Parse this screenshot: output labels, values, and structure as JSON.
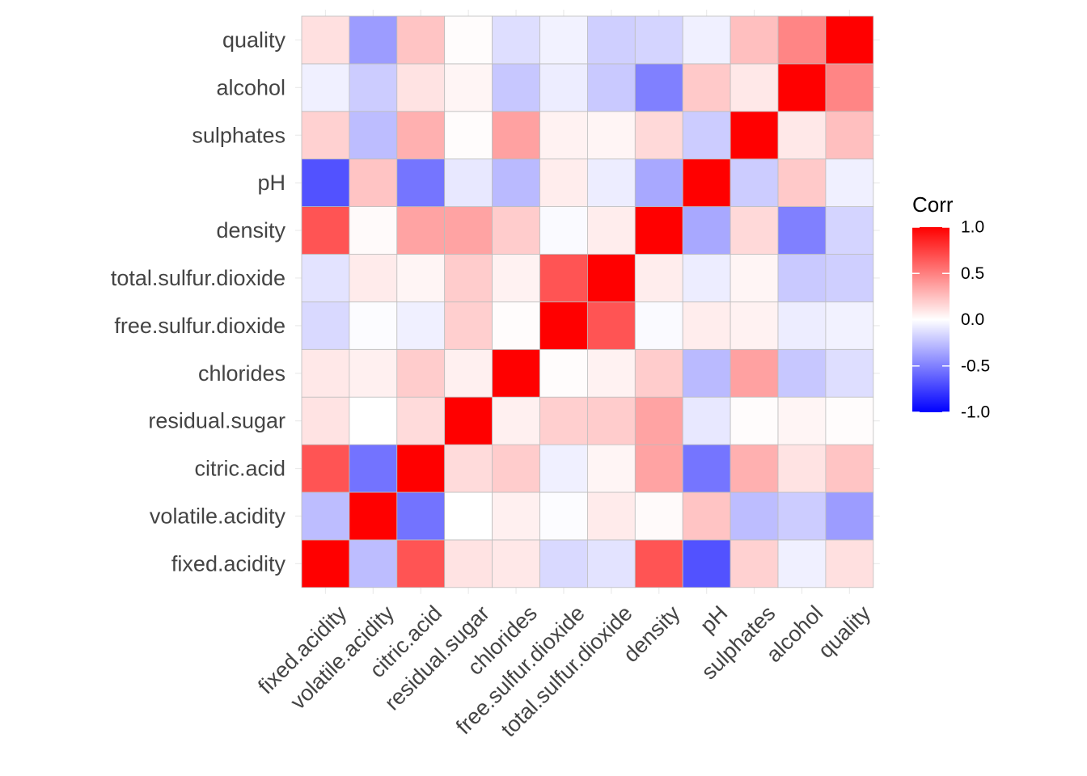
{
  "chart_data": {
    "type": "heatmap",
    "title": "",
    "xlabel": "",
    "ylabel": "",
    "variables": [
      "fixed.acidity",
      "volatile.acidity",
      "citric.acid",
      "residual.sugar",
      "chlorides",
      "free.sulfur.dioxide",
      "total.sulfur.dioxide",
      "density",
      "pH",
      "sulphates",
      "alcohol",
      "quality"
    ],
    "matrix": [
      [
        1.0,
        -0.26,
        0.67,
        0.11,
        0.09,
        -0.15,
        -0.11,
        0.67,
        -0.68,
        0.18,
        -0.06,
        0.12
      ],
      [
        -0.26,
        1.0,
        -0.55,
        0.0,
        0.06,
        -0.01,
        0.08,
        0.02,
        0.23,
        -0.26,
        -0.2,
        -0.39
      ],
      [
        0.67,
        -0.55,
        1.0,
        0.14,
        0.2,
        -0.06,
        0.04,
        0.36,
        -0.54,
        0.31,
        0.11,
        0.23
      ],
      [
        0.11,
        0.0,
        0.14,
        1.0,
        0.06,
        0.19,
        0.2,
        0.36,
        -0.09,
        0.01,
        0.04,
        0.01
      ],
      [
        0.09,
        0.06,
        0.2,
        0.06,
        1.0,
        0.01,
        0.05,
        0.2,
        -0.27,
        0.37,
        -0.22,
        -0.13
      ],
      [
        -0.15,
        -0.01,
        -0.06,
        0.19,
        0.01,
        1.0,
        0.67,
        -0.02,
        0.07,
        0.05,
        -0.07,
        -0.05
      ],
      [
        -0.11,
        0.08,
        0.04,
        0.2,
        0.05,
        0.67,
        1.0,
        0.07,
        -0.07,
        0.04,
        -0.21,
        -0.19
      ],
      [
        0.67,
        0.02,
        0.36,
        0.36,
        0.2,
        -0.02,
        0.07,
        1.0,
        -0.34,
        0.15,
        -0.5,
        -0.17
      ],
      [
        -0.68,
        0.23,
        -0.54,
        -0.09,
        -0.27,
        0.07,
        -0.07,
        -0.34,
        1.0,
        -0.2,
        0.21,
        -0.06
      ],
      [
        0.18,
        -0.26,
        0.31,
        0.01,
        0.37,
        0.05,
        0.04,
        0.15,
        -0.2,
        1.0,
        0.09,
        0.25
      ],
      [
        -0.06,
        -0.2,
        0.11,
        0.04,
        -0.22,
        -0.07,
        -0.21,
        -0.5,
        0.21,
        0.09,
        1.0,
        0.48
      ],
      [
        0.12,
        -0.39,
        0.23,
        0.01,
        -0.13,
        -0.05,
        -0.19,
        -0.17,
        -0.06,
        0.25,
        0.48,
        1.0
      ]
    ],
    "value_range": [
      -1.0,
      1.0
    ],
    "colorscale": {
      "low": "#0000FF",
      "mid": "#FFFFFF",
      "high": "#FF0000"
    },
    "legend": {
      "title": "Corr",
      "placement": "right",
      "ticks": [
        1.0,
        0.5,
        0.0,
        -0.5,
        -1.0
      ],
      "tick_labels": [
        "1.0",
        "0.5",
        "0.0",
        "-0.5",
        "-1.0"
      ]
    },
    "cell_border_color": "#BDBDBD",
    "grid": true,
    "grid_color": "#EBEBEB",
    "axis_text_color": "#444444"
  }
}
